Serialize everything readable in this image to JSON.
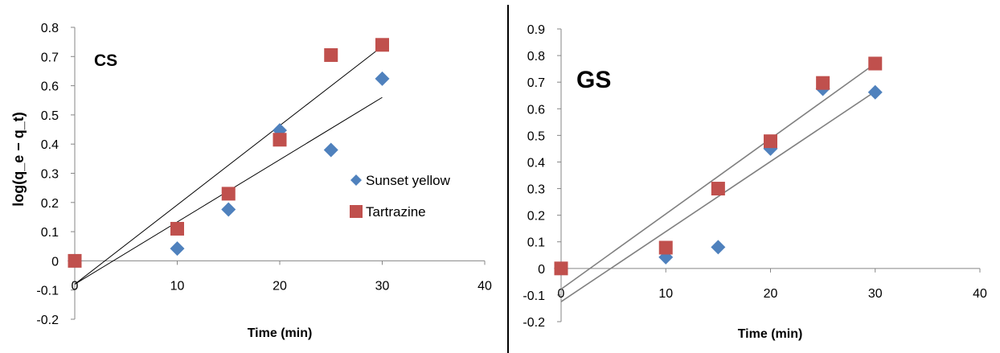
{
  "chart_data": [
    {
      "type": "scatter",
      "panel_label": "CS",
      "xlabel": "Time (min)",
      "ylabel": "log(q_e − q_t)",
      "xlim": [
        0,
        40
      ],
      "ylim": [
        -0.2,
        0.8
      ],
      "x_ticks": [
        0,
        10,
        20,
        30,
        40
      ],
      "y_ticks": [
        -0.2,
        -0.1,
        0,
        0.1,
        0.2,
        0.3,
        0.4,
        0.5,
        0.6,
        0.7,
        0.8
      ],
      "grid": false,
      "legend_position": "right",
      "series": [
        {
          "name": "Sunset yellow",
          "marker": "diamond",
          "color": "#4f81bd",
          "x": [
            0,
            10,
            15,
            20,
            25,
            30
          ],
          "y": [
            0,
            0.042,
            0.176,
            0.447,
            0.38,
            0.624
          ],
          "trendline": [
            [
              0,
              -0.08
            ],
            [
              30,
              0.56
            ]
          ]
        },
        {
          "name": "Tartrazine",
          "marker": "square",
          "color": "#c0504d",
          "x": [
            0,
            10,
            15,
            20,
            25,
            30
          ],
          "y": [
            0,
            0.11,
            0.23,
            0.415,
            0.705,
            0.74
          ],
          "trendline": [
            [
              0,
              -0.08
            ],
            [
              30,
              0.735
            ]
          ]
        }
      ]
    },
    {
      "type": "scatter",
      "panel_label": "GS",
      "xlabel": "Time (min)",
      "ylabel": "",
      "xlim": [
        0,
        40
      ],
      "ylim": [
        -0.2,
        0.9
      ],
      "x_ticks": [
        0,
        10,
        20,
        30,
        40
      ],
      "y_ticks": [
        -0.2,
        -0.1,
        0,
        0.1,
        0.2,
        0.3,
        0.4,
        0.5,
        0.6,
        0.7,
        0.8,
        0.9
      ],
      "grid": false,
      "series": [
        {
          "marker": "diamond",
          "color": "#4f81bd",
          "x": [
            0,
            10,
            15,
            20,
            25,
            30
          ],
          "y": [
            0,
            0.042,
            0.08,
            0.45,
            0.675,
            0.662
          ],
          "trendline": [
            [
              0,
              -0.125
            ],
            [
              30,
              0.665
            ]
          ]
        },
        {
          "marker": "square",
          "color": "#c0504d",
          "x": [
            0,
            10,
            15,
            20,
            25,
            30
          ],
          "y": [
            0,
            0.078,
            0.3,
            0.478,
            0.697,
            0.77
          ],
          "trendline": [
            [
              0,
              -0.078
            ],
            [
              30,
              0.77
            ]
          ]
        }
      ]
    }
  ]
}
